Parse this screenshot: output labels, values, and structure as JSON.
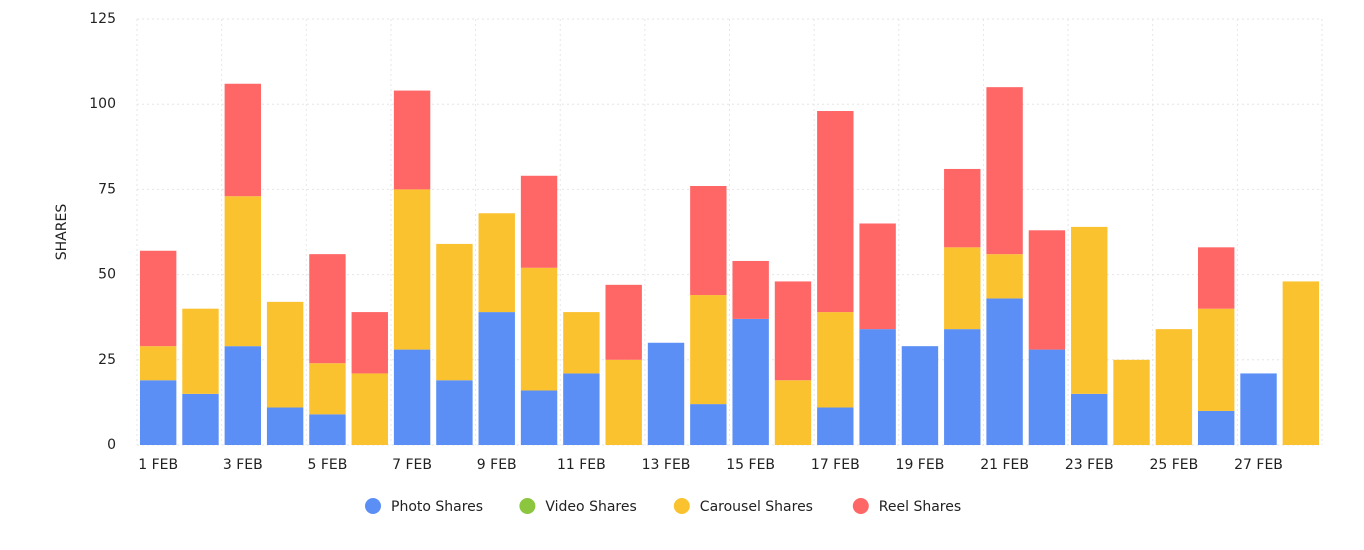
{
  "chart_data": {
    "type": "stacked_bar",
    "y_label": "SHARES",
    "categories": [
      "1 FEB",
      null,
      "3 FEB",
      null,
      "5 FEB",
      null,
      "7 FEB",
      null,
      "9 FEB",
      null,
      "11 FEB",
      null,
      "13 FEB",
      null,
      "15 FEB",
      null,
      "17 FEB",
      null,
      "19 FEB",
      null,
      "21 FEB",
      null,
      "23 FEB",
      null,
      "25 FEB",
      null,
      "27 FEB",
      null
    ],
    "series": [
      {
        "name": "Photo Shares",
        "color": "#5b8ff5",
        "values": [
          19,
          15,
          29,
          11,
          9,
          0,
          28,
          19,
          39,
          16,
          21,
          0,
          30,
          12,
          37,
          0,
          11,
          34,
          29,
          34,
          43,
          28,
          15,
          0,
          0,
          10,
          21,
          0
        ]
      },
      {
        "name": "Video Shares",
        "color": "#8cc63f",
        "values": [
          0,
          0,
          0,
          0,
          0,
          0,
          0,
          0,
          0,
          0,
          0,
          0,
          0,
          0,
          0,
          0,
          0,
          0,
          0,
          0,
          0,
          0,
          0,
          0,
          0,
          0,
          0,
          0
        ]
      },
      {
        "name": "Carousel Shares",
        "color": "#fbc230",
        "values": [
          10,
          25,
          44,
          31,
          15,
          21,
          47,
          40,
          29,
          36,
          18,
          25,
          0,
          32,
          0,
          19,
          28,
          0,
          0,
          24,
          13,
          0,
          49,
          25,
          34,
          30,
          0,
          48
        ]
      },
      {
        "name": "Reel Shares",
        "color": "#ff6666",
        "values": [
          28,
          0,
          33,
          0,
          32,
          18,
          29,
          0,
          0,
          27,
          0,
          22,
          0,
          32,
          17,
          29,
          59,
          31,
          0,
          23,
          49,
          35,
          0,
          0,
          0,
          18,
          0,
          0
        ]
      }
    ],
    "ylim": [
      0,
      125
    ],
    "yticks": [
      0,
      25,
      50,
      75,
      100,
      125
    ],
    "grid": true,
    "legend": "bottom"
  }
}
